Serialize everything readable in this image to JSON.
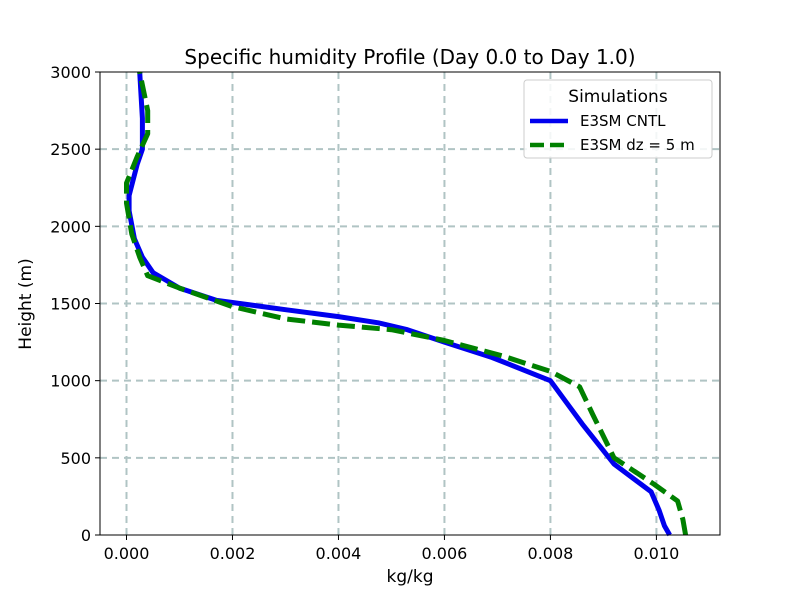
{
  "chart_data": {
    "type": "line",
    "title": "Specific humidity Profile (Day 0.0 to Day 1.0)",
    "xlabel": "kg/kg",
    "ylabel": "Height (m)",
    "xlim": [
      -0.0005,
      0.0112
    ],
    "ylim": [
      0,
      3000
    ],
    "xticks": [
      0.0,
      0.002,
      0.004,
      0.006,
      0.008,
      0.01
    ],
    "xtick_labels": [
      "0.000",
      "0.002",
      "0.004",
      "0.006",
      "0.008",
      "0.010"
    ],
    "yticks": [
      0,
      500,
      1000,
      1500,
      2000,
      2500,
      3000
    ],
    "ytick_labels": [
      "0",
      "500",
      "1000",
      "1500",
      "2000",
      "2500",
      "3000"
    ],
    "grid": true,
    "legend": {
      "title": "Simulations",
      "placement": "top-right"
    },
    "series": [
      {
        "name": "E3SM CNTL",
        "color": "#0000ee",
        "style": "solid",
        "points": [
          [
            0.01025,
            0
          ],
          [
            0.01015,
            60
          ],
          [
            0.01005,
            160
          ],
          [
            0.0099,
            280
          ],
          [
            0.0092,
            460
          ],
          [
            0.0086,
            720
          ],
          [
            0.0083,
            860
          ],
          [
            0.008,
            1000
          ],
          [
            0.0069,
            1150
          ],
          [
            0.006,
            1250
          ],
          [
            0.0053,
            1330
          ],
          [
            0.00475,
            1375
          ],
          [
            0.004,
            1415
          ],
          [
            0.003,
            1460
          ],
          [
            0.0017,
            1520
          ],
          [
            0.001,
            1600
          ],
          [
            0.0005,
            1700
          ],
          [
            0.0003,
            1800
          ],
          [
            0.00015,
            1920
          ],
          [
            5e-05,
            2100
          ],
          [
            5e-05,
            2200
          ],
          [
            0.0002,
            2400
          ],
          [
            0.0003,
            2500
          ],
          [
            0.0003,
            2700
          ],
          [
            0.00025,
            3000
          ]
        ]
      },
      {
        "name": "E3SM dz = 5 m",
        "color": "#008000",
        "style": "dashed",
        "points": [
          [
            0.01055,
            0
          ],
          [
            0.0105,
            100
          ],
          [
            0.0104,
            220
          ],
          [
            0.00995,
            330
          ],
          [
            0.0092,
            500
          ],
          [
            0.0088,
            780
          ],
          [
            0.00855,
            960
          ],
          [
            0.008,
            1060
          ],
          [
            0.0071,
            1160
          ],
          [
            0.006,
            1260
          ],
          [
            0.005,
            1330
          ],
          [
            0.004,
            1360
          ],
          [
            0.003,
            1400
          ],
          [
            0.002,
            1480
          ],
          [
            0.001,
            1600
          ],
          [
            0.0004,
            1680
          ],
          [
            0.00025,
            1800
          ],
          [
            0.0001,
            1950
          ],
          [
            0.0,
            2150
          ],
          [
            0.0,
            2280
          ],
          [
            0.0002,
            2450
          ],
          [
            0.0004,
            2600
          ],
          [
            0.0004,
            2750
          ],
          [
            0.00025,
            3000
          ]
        ]
      }
    ]
  }
}
